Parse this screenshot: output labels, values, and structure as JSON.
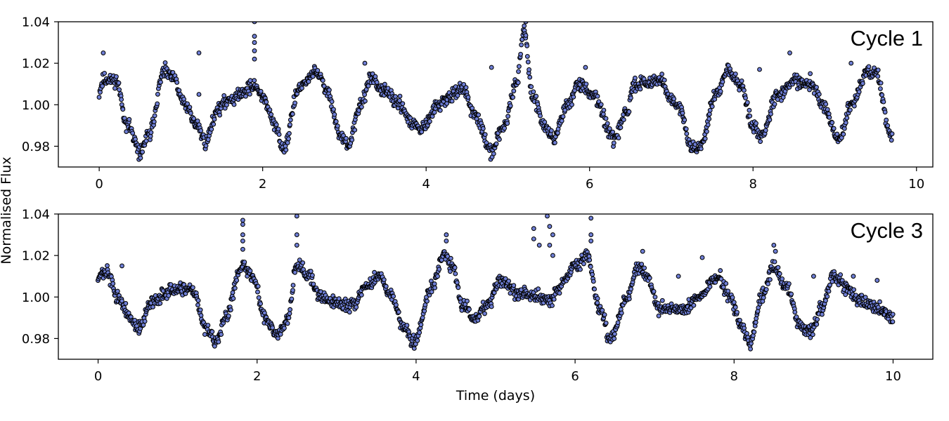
{
  "chart_data": [
    {
      "type": "scatter",
      "panel_label": "Cycle 1",
      "xlim": [
        -0.5,
        10.2
      ],
      "ylim": [
        0.97,
        1.04
      ],
      "x_ticks": [
        0,
        2,
        4,
        6,
        8,
        10
      ],
      "y_ticks": [
        "0.98",
        "1.00",
        "1.02",
        "1.04"
      ],
      "marker_face_color": "#6f7fd6",
      "marker_edge_color": "#000000",
      "grid": false,
      "light_curve": {
        "x_start": 0.0,
        "x_end": 9.7,
        "anchors": [
          [
            0.0,
            1.006
          ],
          [
            0.05,
            1.012
          ],
          [
            0.2,
            1.012
          ],
          [
            0.35,
            0.99
          ],
          [
            0.5,
            0.977
          ],
          [
            0.6,
            0.985
          ],
          [
            0.8,
            1.016
          ],
          [
            0.9,
            1.013
          ],
          [
            1.05,
            1.0
          ],
          [
            1.2,
            0.99
          ],
          [
            1.3,
            0.982
          ],
          [
            1.45,
            0.998
          ],
          [
            1.6,
            1.003
          ],
          [
            1.9,
            1.009
          ],
          [
            2.0,
            1.004
          ],
          [
            2.15,
            0.99
          ],
          [
            2.25,
            0.979
          ],
          [
            2.45,
            1.008
          ],
          [
            2.65,
            1.016
          ],
          [
            2.8,
            1.006
          ],
          [
            2.95,
            0.985
          ],
          [
            3.05,
            0.98
          ],
          [
            3.2,
            1.0
          ],
          [
            3.32,
            1.013
          ],
          [
            3.5,
            1.006
          ],
          [
            3.65,
            1.001
          ],
          [
            3.85,
            0.99
          ],
          [
            3.95,
            0.988
          ],
          [
            4.15,
            1.0
          ],
          [
            4.3,
            1.004
          ],
          [
            4.45,
            1.008
          ],
          [
            4.6,
            0.995
          ],
          [
            4.8,
            0.977
          ],
          [
            4.95,
            0.99
          ],
          [
            5.1,
            1.01
          ],
          [
            5.2,
            1.035
          ],
          [
            5.3,
            1.005
          ],
          [
            5.45,
            0.99
          ],
          [
            5.55,
            0.984
          ],
          [
            5.75,
            1.001
          ],
          [
            5.85,
            1.01
          ],
          [
            6.05,
            1.005
          ],
          [
            6.3,
            0.983
          ],
          [
            6.45,
            0.996
          ],
          [
            6.55,
            1.01
          ],
          [
            6.85,
            1.012
          ],
          [
            7.1,
            0.998
          ],
          [
            7.25,
            0.979
          ],
          [
            7.35,
            0.98
          ],
          [
            7.55,
            1.005
          ],
          [
            7.7,
            1.016
          ],
          [
            7.85,
            1.01
          ],
          [
            8.0,
            0.99
          ],
          [
            8.1,
            0.985
          ],
          [
            8.3,
            1.005
          ],
          [
            8.5,
            1.011
          ],
          [
            8.7,
            1.01
          ],
          [
            8.85,
            1.0
          ],
          [
            9.05,
            0.983
          ],
          [
            9.2,
            1.0
          ],
          [
            9.4,
            1.016
          ],
          [
            9.5,
            1.015
          ],
          [
            9.7,
            0.984
          ]
        ],
        "outliers": [
          [
            0.05,
            1.025
          ],
          [
            1.22,
            1.025
          ],
          [
            1.22,
            1.005
          ],
          [
            1.9,
            1.04
          ],
          [
            1.9,
            1.033
          ],
          [
            1.9,
            1.03
          ],
          [
            1.9,
            1.026
          ],
          [
            1.9,
            1.022
          ],
          [
            3.25,
            1.02
          ],
          [
            4.8,
            1.018
          ],
          [
            5.95,
            1.018
          ],
          [
            8.08,
            1.017
          ],
          [
            8.45,
            1.025
          ],
          [
            9.2,
            1.02
          ],
          [
            5.22,
            1.04
          ],
          [
            5.2,
            1.038
          ],
          [
            8.7,
            1.015
          ]
        ]
      }
    },
    {
      "type": "scatter",
      "panel_label": "Cycle 3",
      "xlabel": "Time (days)",
      "xlim": [
        -0.5,
        10.5
      ],
      "ylim": [
        0.97,
        1.04
      ],
      "x_ticks": [
        0,
        2,
        4,
        6,
        8,
        10
      ],
      "y_ticks": [
        "0.98",
        "1.00",
        "1.02",
        "1.04"
      ],
      "marker_face_color": "#6f7fd6",
      "marker_edge_color": "#000000",
      "grid": false,
      "light_curve": {
        "x_start": 0.0,
        "x_end": 10.0,
        "anchors": [
          [
            0.0,
            1.01
          ],
          [
            0.1,
            1.012
          ],
          [
            0.25,
            1.0
          ],
          [
            0.4,
            0.99
          ],
          [
            0.5,
            0.985
          ],
          [
            0.7,
            0.998
          ],
          [
            0.9,
            1.003
          ],
          [
            1.2,
            1.003
          ],
          [
            1.35,
            0.985
          ],
          [
            1.5,
            0.978
          ],
          [
            1.6,
            0.99
          ],
          [
            1.8,
            1.015
          ],
          [
            1.95,
            1.01
          ],
          [
            2.1,
            0.99
          ],
          [
            2.25,
            0.982
          ],
          [
            2.38,
            0.99
          ],
          [
            2.5,
            1.016
          ],
          [
            2.65,
            1.01
          ],
          [
            2.8,
            1.0
          ],
          [
            3.0,
            0.997
          ],
          [
            3.2,
            0.996
          ],
          [
            3.35,
            1.005
          ],
          [
            3.55,
            1.01
          ],
          [
            3.7,
            1.0
          ],
          [
            3.85,
            0.985
          ],
          [
            3.97,
            0.978
          ],
          [
            4.2,
            1.005
          ],
          [
            4.35,
            1.02
          ],
          [
            4.45,
            1.015
          ],
          [
            4.6,
            0.995
          ],
          [
            4.75,
            0.99
          ],
          [
            4.9,
            0.997
          ],
          [
            5.05,
            1.008
          ],
          [
            5.3,
            1.002
          ],
          [
            5.55,
            1.0
          ],
          [
            5.7,
            0.998
          ],
          [
            5.8,
            1.005
          ],
          [
            6.0,
            1.015
          ],
          [
            6.15,
            1.02
          ],
          [
            6.3,
            0.995
          ],
          [
            6.45,
            0.98
          ],
          [
            6.65,
            1.0
          ],
          [
            6.8,
            1.015
          ],
          [
            6.9,
            1.01
          ],
          [
            7.05,
            0.995
          ],
          [
            7.35,
            0.993
          ],
          [
            7.55,
            1.0
          ],
          [
            7.8,
            1.01
          ],
          [
            7.95,
            1.0
          ],
          [
            8.1,
            0.985
          ],
          [
            8.2,
            0.978
          ],
          [
            8.35,
            1.0
          ],
          [
            8.5,
            1.015
          ],
          [
            8.65,
            1.005
          ],
          [
            8.85,
            0.985
          ],
          [
            8.95,
            0.983
          ],
          [
            9.1,
            0.995
          ],
          [
            9.25,
            1.01
          ],
          [
            9.4,
            1.005
          ],
          [
            9.6,
            0.998
          ],
          [
            9.8,
            0.995
          ],
          [
            10.0,
            0.99
          ]
        ],
        "outliers": [
          [
            0.3,
            1.015
          ],
          [
            1.82,
            1.037
          ],
          [
            1.82,
            1.035
          ],
          [
            1.82,
            1.03
          ],
          [
            1.82,
            1.027
          ],
          [
            1.82,
            1.023
          ],
          [
            2.5,
            1.039
          ],
          [
            2.5,
            1.03
          ],
          [
            2.5,
            1.025
          ],
          [
            4.38,
            1.03
          ],
          [
            4.38,
            1.027
          ],
          [
            5.48,
            1.033
          ],
          [
            5.48,
            1.028
          ],
          [
            5.55,
            1.025
          ],
          [
            5.65,
            1.039
          ],
          [
            5.68,
            1.034
          ],
          [
            5.72,
            1.03
          ],
          [
            5.68,
            1.025
          ],
          [
            5.72,
            1.02
          ],
          [
            6.2,
            1.038
          ],
          [
            6.2,
            1.03
          ],
          [
            6.2,
            1.027
          ],
          [
            6.85,
            1.022
          ],
          [
            7.3,
            1.01
          ],
          [
            7.6,
            1.019
          ],
          [
            8.5,
            1.025
          ],
          [
            8.52,
            1.022
          ],
          [
            9.0,
            1.01
          ],
          [
            9.5,
            1.01
          ],
          [
            9.8,
            1.008
          ]
        ]
      }
    }
  ],
  "shared_ylabel": "Normalised Flux"
}
